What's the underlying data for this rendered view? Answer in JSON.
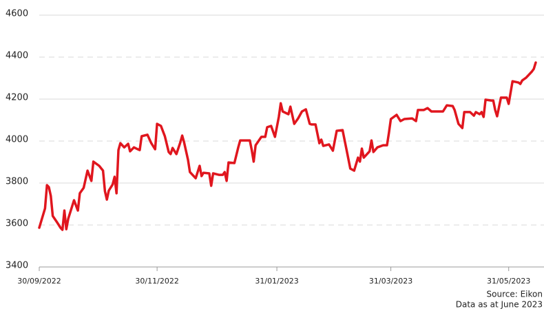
{
  "chart_data": {
    "type": "line",
    "x": [
      "30/09/2022",
      "03/10/2022",
      "04/10/2022",
      "05/10/2022",
      "06/10/2022",
      "07/10/2022",
      "09/10/2022",
      "11/10/2022",
      "12/10/2022",
      "13/10/2022",
      "14/10/2022",
      "15/10/2022",
      "18/10/2022",
      "20/10/2022",
      "21/10/2022",
      "23/10/2022",
      "25/10/2022",
      "27/10/2022",
      "28/10/2022",
      "31/10/2022",
      "02/11/2022",
      "03/11/2022",
      "04/11/2022",
      "05/11/2022",
      "07/11/2022",
      "08/11/2022",
      "09/11/2022",
      "10/11/2022",
      "11/11/2022",
      "13/11/2022",
      "15/11/2022",
      "16/11/2022",
      "18/11/2022",
      "20/11/2022",
      "21/11/2022",
      "22/11/2022",
      "25/11/2022",
      "27/11/2022",
      "29/11/2022",
      "30/11/2022",
      "02/12/2022",
      "04/12/2022",
      "06/12/2022",
      "07/12/2022",
      "08/12/2022",
      "10/12/2022",
      "12/12/2022",
      "13/12/2022",
      "14/12/2022",
      "16/12/2022",
      "17/12/2022",
      "20/12/2022",
      "22/12/2022",
      "23/12/2022",
      "24/12/2022",
      "27/12/2022",
      "28/12/2022",
      "29/12/2022",
      "01/01/2023",
      "03/01/2023",
      "04/01/2023",
      "05/01/2023",
      "06/01/2023",
      "09/01/2023",
      "11/01/2023",
      "12/01/2023",
      "17/01/2023",
      "18/01/2023",
      "19/01/2023",
      "20/01/2023",
      "23/01/2023",
      "25/01/2023",
      "26/01/2023",
      "28/01/2023",
      "30/01/2023",
      "01/02/2023",
      "02/02/2023",
      "03/02/2023",
      "06/02/2023",
      "07/02/2023",
      "09/02/2023",
      "11/02/2023",
      "13/02/2023",
      "15/02/2023",
      "17/02/2023",
      "18/02/2023",
      "20/02/2023",
      "22/02/2023",
      "23/02/2023",
      "24/02/2023",
      "27/02/2023",
      "01/03/2023",
      "03/03/2023",
      "06/03/2023",
      "08/03/2023",
      "10/03/2023",
      "12/03/2023",
      "14/03/2023",
      "15/03/2023",
      "16/03/2023",
      "17/03/2023",
      "20/03/2023",
      "21/03/2023",
      "22/03/2023",
      "24/03/2023",
      "27/03/2023",
      "29/03/2023",
      "30/03/2023",
      "31/03/2023",
      "03/04/2023",
      "05/04/2023",
      "07/04/2023",
      "11/04/2023",
      "13/04/2023",
      "14/04/2023",
      "17/04/2023",
      "19/04/2023",
      "21/04/2023",
      "24/04/2023",
      "27/04/2023",
      "29/04/2023",
      "02/05/2023",
      "03/05/2023",
      "05/05/2023",
      "07/05/2023",
      "08/05/2023",
      "11/05/2023",
      "13/05/2023",
      "14/05/2023",
      "16/05/2023",
      "17/05/2023",
      "18/05/2023",
      "19/05/2023",
      "22/05/2023",
      "23/05/2023",
      "24/05/2023",
      "25/05/2023",
      "27/05/2023",
      "30/05/2023",
      "31/05/2023",
      "02/06/2023",
      "05/06/2023",
      "06/06/2023",
      "07/06/2023",
      "09/06/2023",
      "12/06/2023",
      "13/06/2023",
      "14/06/2023"
    ],
    "series": [
      {
        "color": "#e0161e",
        "values": [
          3587,
          3679,
          3790,
          3780,
          3738,
          3643,
          3616,
          3587,
          3577,
          3669,
          3580,
          3630,
          3718,
          3669,
          3751,
          3777,
          3859,
          3810,
          3902,
          3882,
          3859,
          3761,
          3721,
          3764,
          3793,
          3830,
          3751,
          3957,
          3990,
          3970,
          3987,
          3951,
          3970,
          3961,
          3957,
          4023,
          4030,
          3990,
          3961,
          4082,
          4072,
          4023,
          3948,
          3938,
          3967,
          3938,
          3993,
          4026,
          3993,
          3911,
          3852,
          3823,
          3882,
          3833,
          3849,
          3846,
          3787,
          3846,
          3839,
          3839,
          3852,
          3810,
          3898,
          3895,
          3970,
          4003,
          4003,
          3957,
          3902,
          3980,
          4020,
          4020,
          4066,
          4072,
          4020,
          4115,
          4180,
          4141,
          4128,
          4164,
          4082,
          4108,
          4141,
          4151,
          4082,
          4079,
          4079,
          3990,
          4007,
          3977,
          3984,
          3954,
          4049,
          4052,
          3961,
          3869,
          3859,
          3921,
          3902,
          3964,
          3921,
          3951,
          4003,
          3948,
          3970,
          3980,
          3980,
          4039,
          4105,
          4125,
          4095,
          4105,
          4108,
          4095,
          4148,
          4148,
          4157,
          4141,
          4141,
          4141,
          4170,
          4167,
          4148,
          4082,
          4062,
          4138,
          4138,
          4121,
          4138,
          4128,
          4138,
          4115,
          4197,
          4193,
          4193,
          4148,
          4118,
          4207,
          4207,
          4177,
          4285,
          4279,
          4272,
          4289,
          4302,
          4331,
          4344,
          4374
        ]
      }
    ],
    "xlim": [
      "30/09/2022",
      "14/06/2023"
    ],
    "xticks": [
      "30/09/2022",
      "30/11/2022",
      "31/01/2023",
      "31/03/2023",
      "31/05/2023"
    ],
    "ylim": [
      3400,
      4600
    ],
    "yticks": [
      3400,
      3600,
      3800,
      4000,
      4200,
      4400,
      4600
    ],
    "grid": true,
    "source": "Source: Eikon",
    "note": "Data as at June 2023"
  }
}
